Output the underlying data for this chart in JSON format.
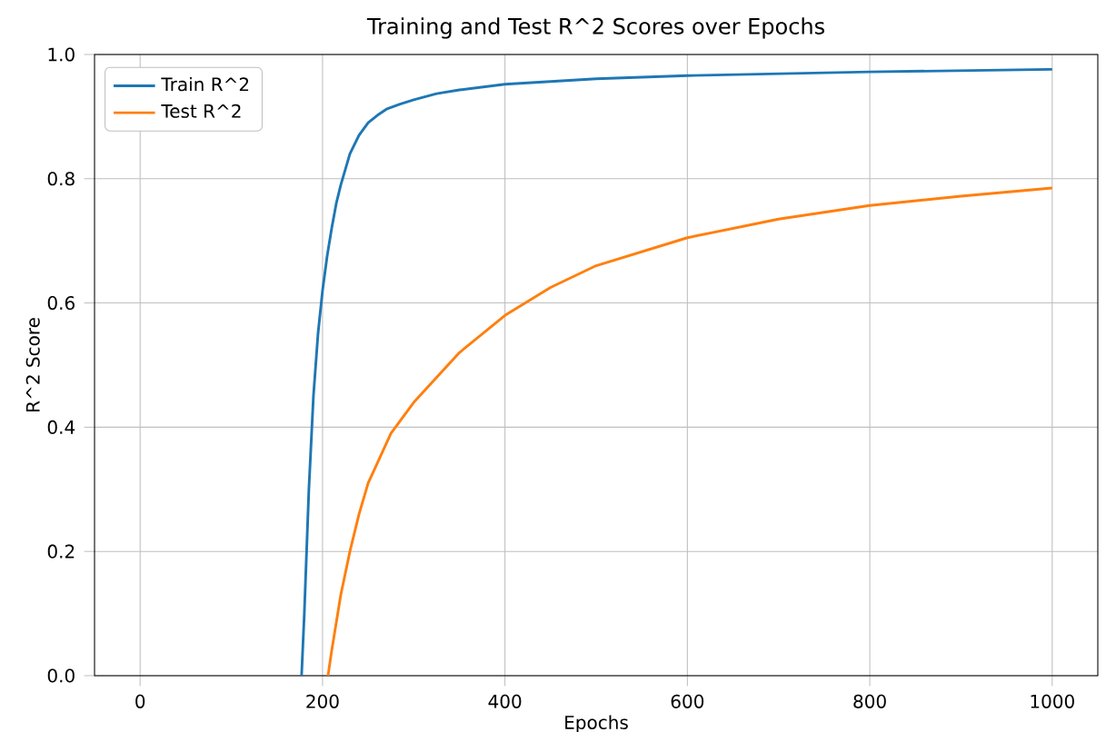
{
  "chart_data": {
    "type": "line",
    "title": "Training and Test R^2 Scores over Epochs",
    "xlabel": "Epochs",
    "ylabel": "R^2 Score",
    "xlim": [
      -50,
      1050
    ],
    "ylim": [
      0,
      1.0
    ],
    "xticks": [
      0,
      200,
      400,
      600,
      800,
      1000
    ],
    "yticks": [
      {
        "value": 0,
        "label": "0.0"
      },
      0.2,
      0.4,
      0.6,
      0.8,
      {
        "value": 1,
        "label": "1.0"
      }
    ],
    "grid": true,
    "legend": "top left",
    "line_style": "solid",
    "marker": "none",
    "series": [
      {
        "name": "Train R^2",
        "color": "#1f77b4",
        "x": [
          177,
          180,
          185,
          190,
          195,
          200,
          205,
          210,
          215,
          220,
          230,
          240,
          250,
          260,
          270,
          285,
          300,
          325,
          350,
          400,
          500,
          600,
          700,
          800,
          900,
          1000
        ],
        "values": [
          0,
          0.1,
          0.3,
          0.45,
          0.55,
          0.62,
          0.675,
          0.72,
          0.76,
          0.79,
          0.84,
          0.87,
          0.89,
          0.902,
          0.912,
          0.92,
          0.927,
          0.937,
          0.943,
          0.952,
          0.961,
          0.966,
          0.969,
          0.972,
          0.974,
          0.976
        ]
      },
      {
        "name": "Test R^2",
        "color": "#ff7f0e",
        "x": [
          206,
          210,
          220,
          230,
          240,
          250,
          275,
          300,
          350,
          400,
          450,
          500,
          600,
          700,
          800,
          900,
          1000
        ],
        "values": [
          0,
          0.04,
          0.13,
          0.2,
          0.26,
          0.31,
          0.39,
          0.44,
          0.52,
          0.58,
          0.625,
          0.66,
          0.705,
          0.735,
          0.757,
          0.772,
          0.785
        ]
      }
    ]
  }
}
